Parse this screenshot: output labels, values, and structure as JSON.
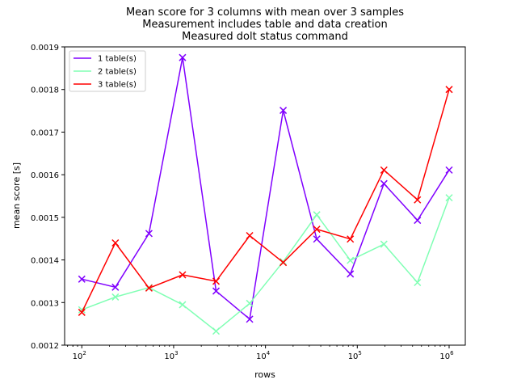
{
  "chart_data": {
    "type": "line",
    "title_lines": [
      "Mean score for 3 columns with mean over 3 samples",
      "Measurement includes table and data creation",
      "Measured dolt status command"
    ],
    "xlabel": "rows",
    "ylabel": "mean score [s]",
    "x_scale": "log",
    "xlim": [
      65,
      1500000
    ],
    "ylim": [
      0.0012,
      0.0019
    ],
    "y_ticks": [
      "0.0012",
      "0.0013",
      "0.0014",
      "0.0015",
      "0.0016",
      "0.0017",
      "0.0018",
      "0.0019"
    ],
    "x_ticks": [
      {
        "base": "10",
        "exp": "2",
        "value": 100
      },
      {
        "base": "10",
        "exp": "3",
        "value": 1000
      },
      {
        "base": "10",
        "exp": "4",
        "value": 10000
      },
      {
        "base": "10",
        "exp": "5",
        "value": 100000
      },
      {
        "base": "10",
        "exp": "6",
        "value": 1000000
      }
    ],
    "x": [
      100,
      232,
      539,
      1250,
      2900,
      6730,
      15600,
      36200,
      84000,
      195000,
      452000,
      1000000
    ],
    "series": [
      {
        "name": "1 table(s)",
        "color": "#8000ff",
        "values": [
          0.001355,
          0.001336,
          0.001462,
          0.001875,
          0.001327,
          0.001261,
          0.001751,
          0.001449,
          0.001367,
          0.001579,
          0.001493,
          0.001611
        ]
      },
      {
        "name": "2 table(s)",
        "color": "#80ffb4",
        "values": [
          0.001283,
          0.001313,
          0.001335,
          0.001295,
          0.001233,
          0.001298,
          0.001396,
          0.001506,
          0.001399,
          0.001437,
          0.001347,
          0.001546
        ]
      },
      {
        "name": "3 table(s)",
        "color": "#ff0000",
        "values": [
          0.001277,
          0.00144,
          0.001334,
          0.001365,
          0.00135,
          0.001457,
          0.001394,
          0.001472,
          0.001449,
          0.001611,
          0.001541,
          0.0018
        ]
      }
    ],
    "legend_position": "top-left",
    "grid": false,
    "marker": "x"
  }
}
